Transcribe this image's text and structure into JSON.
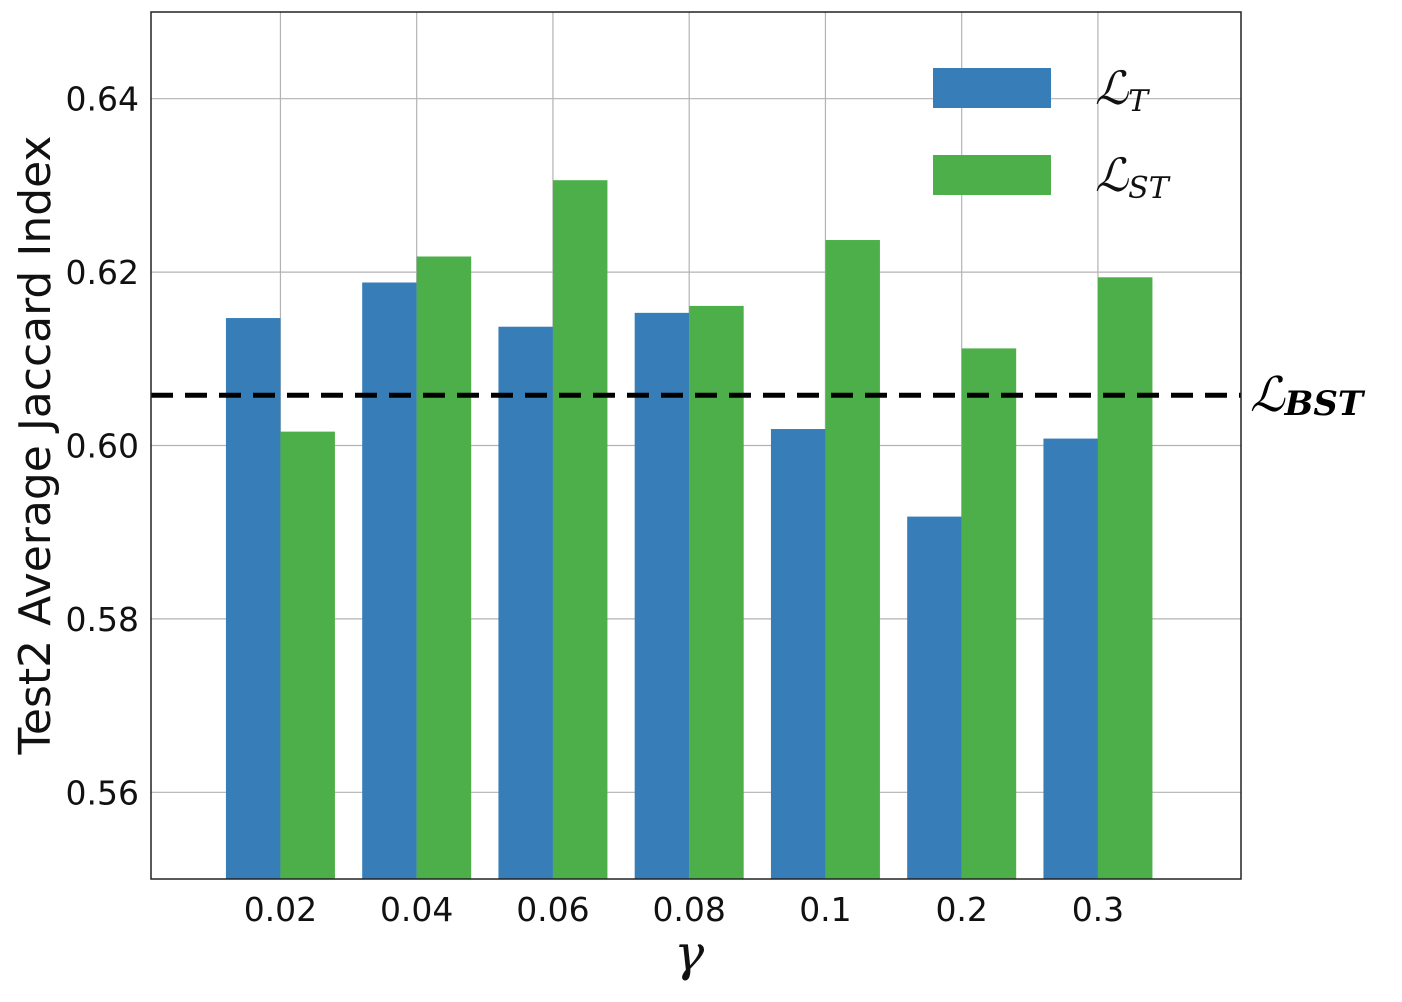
{
  "chart_data": {
    "type": "bar",
    "categories": [
      "0.02",
      "0.04",
      "0.06",
      "0.08",
      "0.1",
      "0.2",
      "0.3"
    ],
    "series": [
      {
        "name": "ℒT",
        "name_main": "ℒ",
        "name_sub": "T",
        "color": "#377eb8",
        "values": [
          0.6147,
          0.6188,
          0.6137,
          0.6153,
          0.6019,
          0.5918,
          0.6008
        ]
      },
      {
        "name": "ℒST",
        "name_main": "ℒ",
        "name_sub": "ST",
        "color": "#4daf4a",
        "values": [
          0.6016,
          0.6218,
          0.6306,
          0.6161,
          0.6237,
          0.6112,
          0.6194
        ]
      }
    ],
    "reference_line": {
      "label": "ℒBST",
      "label_main": "ℒ",
      "label_sub": "BST",
      "value": 0.6058,
      "style": "dashed",
      "color": "#000000"
    },
    "xlabel": "γ",
    "ylabel": "Test2 Average Jaccard Index",
    "ylim": [
      0.55,
      0.65
    ],
    "yticks": [
      0.56,
      0.58,
      0.6,
      0.62,
      0.64
    ],
    "ytick_labels": [
      "0.56",
      "0.58",
      "0.60",
      "0.62",
      "0.64"
    ],
    "grid": true,
    "legend_position": "top-right"
  }
}
